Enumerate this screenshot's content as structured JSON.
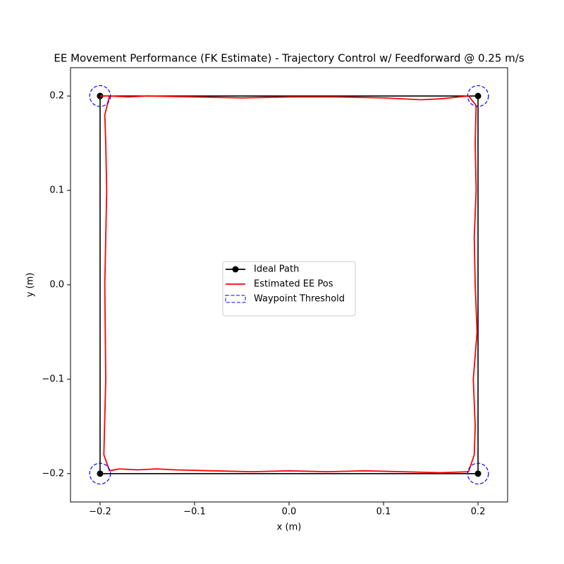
{
  "chart_data": {
    "type": "line",
    "title": "EE Movement Performance (FK Estimate) - Trajectory Control w/ Feedforward @ 0.25 m/s",
    "x_label": "x (m)",
    "y_label": "y (m)",
    "xlim": [
      -0.2313,
      0.2313
    ],
    "ylim": [
      -0.23,
      0.23
    ],
    "xticks": [
      {
        "value": -0.2,
        "label": "−0.2"
      },
      {
        "value": -0.1,
        "label": "−0.1"
      },
      {
        "value": 0,
        "label": "0.0"
      },
      0.1,
      0.2
    ],
    "yticks": [
      {
        "value": -0.2,
        "label": "−0.2"
      },
      {
        "value": -0.1,
        "label": "−0.1"
      },
      {
        "value": 0,
        "label": "0.0"
      },
      0.1,
      0.2
    ],
    "legend": "center",
    "series": [
      {
        "name": "Ideal Path",
        "color": "#000000",
        "marker": "circle",
        "style": "solid",
        "x": [
          -0.2,
          0.2,
          0.2,
          -0.2,
          -0.2
        ],
        "values": [
          0.2,
          0.2,
          -0.2,
          -0.2,
          0.2
        ]
      },
      {
        "name": "Estimated EE Pos",
        "color": "#ff0000",
        "style": "solid",
        "x": [
          -0.2,
          -0.19,
          -0.17,
          -0.15,
          -0.1,
          -0.05,
          0,
          0.05,
          0.1,
          0.14,
          0.16,
          0.18,
          0.19,
          0.198,
          0.197,
          0.198,
          0.196,
          0.197,
          0.199,
          0.195,
          0.197,
          0.196,
          0.19,
          0.16,
          0.12,
          0.08,
          0.04,
          0,
          -0.04,
          -0.08,
          -0.12,
          -0.14,
          -0.16,
          -0.18,
          -0.19,
          -0.196,
          -0.194,
          -0.195,
          -0.193,
          -0.194,
          -0.195,
          -0.19,
          -0.2
        ],
        "values": [
          0.2,
          0.2,
          0.199,
          0.2,
          0.199,
          0.198,
          0.199,
          0.199,
          0.198,
          0.196,
          0.197,
          0.199,
          0.2,
          0.19,
          0.15,
          0.1,
          0.05,
          0,
          -0.05,
          -0.1,
          -0.15,
          -0.18,
          -0.198,
          -0.199,
          -0.198,
          -0.197,
          -0.198,
          -0.197,
          -0.198,
          -0.197,
          -0.196,
          -0.195,
          -0.196,
          -0.195,
          -0.197,
          -0.18,
          -0.1,
          0,
          0.1,
          0.15,
          0.18,
          0.2,
          0.2
        ]
      },
      {
        "name": "Waypoint Threshold",
        "color": "#0000ff",
        "style": "dashed",
        "shape": "circle",
        "x": [
          -0.2,
          0.2,
          0.2,
          -0.2
        ],
        "values": [
          0.2,
          0.2,
          -0.2,
          -0.2
        ],
        "radius": [
          0.011,
          0.011,
          0.011,
          0.011
        ]
      }
    ]
  }
}
